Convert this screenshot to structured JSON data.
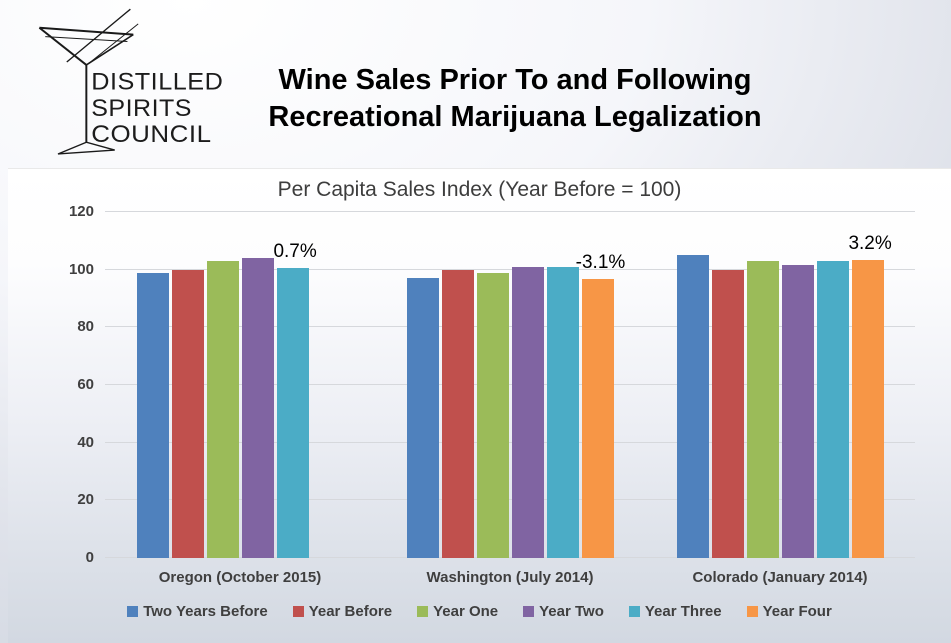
{
  "logo": {
    "lines": [
      "DISTILLED",
      "SPIRITS",
      "COUNCIL"
    ],
    "icon": "martini-glass"
  },
  "title": {
    "line1": "Wine Sales Prior To and Following",
    "line2": "Recreational Marijuana Legalization"
  },
  "chart_data": {
    "type": "bar",
    "title": "Per Capita Sales Index (Year Before = 100)",
    "categories": [
      "Oregon (October 2015)",
      "Washington (July 2014)",
      "Colorado (January 2014)"
    ],
    "series": [
      {
        "name": "Two Years Before",
        "color": "#4F81BD",
        "values": [
          99,
          97,
          105
        ]
      },
      {
        "name": "Year Before",
        "color": "#C0504D",
        "values": [
          100,
          100,
          100
        ]
      },
      {
        "name": "Year One",
        "color": "#9BBB59",
        "values": [
          103,
          99,
          103
        ]
      },
      {
        "name": "Year Two",
        "color": "#8064A2",
        "values": [
          104,
          101,
          101.5
        ]
      },
      {
        "name": "Year Three",
        "color": "#4BACC6",
        "values": [
          100.7,
          101,
          103
        ]
      },
      {
        "name": "Year Four",
        "color": "#F79646",
        "values": [
          null,
          96.9,
          103.2
        ]
      }
    ],
    "annotations": [
      {
        "category_index": 0,
        "series_index": 4,
        "text": "0.7%"
      },
      {
        "category_index": 1,
        "series_index": 5,
        "text": "-3.1%"
      },
      {
        "category_index": 2,
        "series_index": 5,
        "text": "3.2%"
      }
    ],
    "y_axis": {
      "min": 0,
      "max": 120,
      "step": 20,
      "ticks": [
        0,
        20,
        40,
        60,
        80,
        100,
        120
      ]
    },
    "grid": true,
    "legend_position": "bottom"
  }
}
